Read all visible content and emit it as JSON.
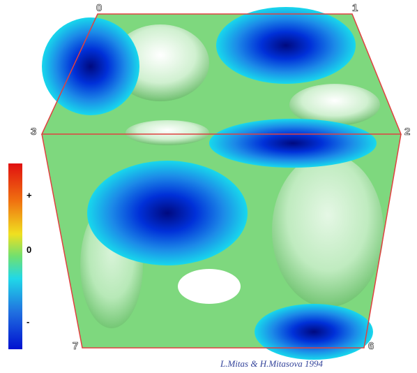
{
  "cube": {
    "vertices": [
      "0",
      "1",
      "2",
      "3",
      "6",
      "7"
    ]
  },
  "legend": {
    "labels": [
      "+",
      "0",
      "-"
    ]
  },
  "credit": "L.Mitas & H.Mitasova 1994"
}
